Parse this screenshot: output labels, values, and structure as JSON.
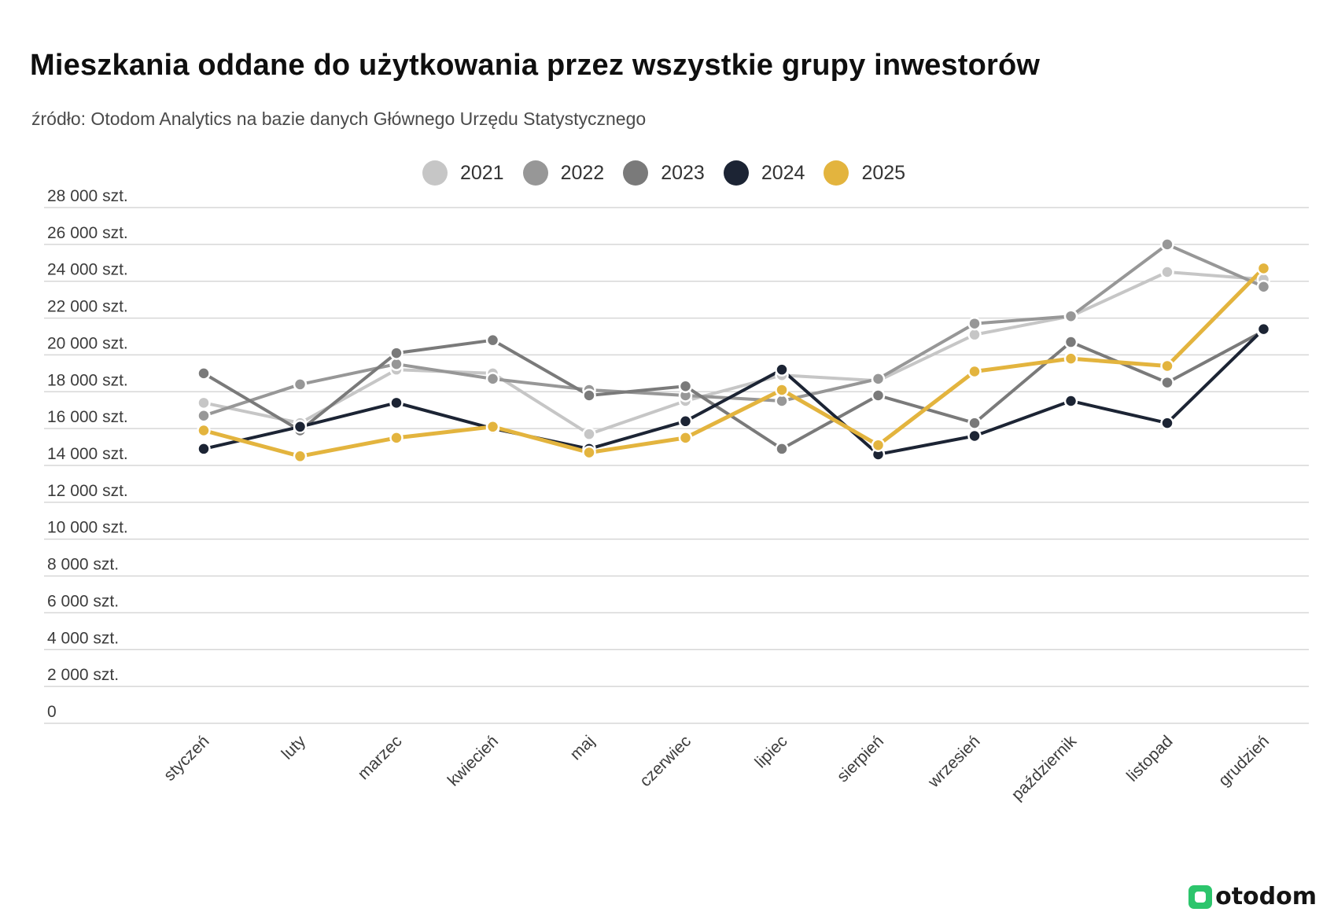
{
  "title": "Mieszkania oddane do użytkowania przez wszystkie grupy  inwestorów",
  "subtitle": "źródło: Otodom Analytics na bazie danych Głównego Urzędu Statystycznego",
  "logo_text": "otodom",
  "colors": {
    "gridline": "#d7d7d7",
    "logo_green": "#2cc56c"
  },
  "chart_data": {
    "type": "line",
    "categories": [
      "styczeń",
      "luty",
      "marzec",
      "kwiecień",
      "maj",
      "czerwiec",
      "lipiec",
      "sierpień",
      "wrzesień",
      "październik",
      "listopad",
      "grudzień"
    ],
    "y_tick_labels": [
      "0",
      "2 000 szt.",
      "4 000 szt.",
      "6 000 szt.",
      "8 000 szt.",
      "10 000 szt.",
      "12 000 szt.",
      "14 000 szt.",
      "16 000 szt.",
      "18 000 szt.",
      "20 000 szt.",
      "22 000 szt.",
      "24 000 szt.",
      "26 000 szt.",
      "28 000 szt."
    ],
    "ylim": [
      0,
      28000
    ],
    "grid": true,
    "legend_position": "top-center",
    "series": [
      {
        "name": "2021",
        "color": "#c6c6c6",
        "values": [
          17400,
          16300,
          19200,
          19000,
          15700,
          17500,
          18900,
          18600,
          21100,
          22100,
          24500,
          24100
        ]
      },
      {
        "name": "2022",
        "color": "#979797",
        "values": [
          16700,
          18400,
          19500,
          18700,
          18100,
          17800,
          17500,
          18700,
          21700,
          22100,
          26000,
          23700
        ]
      },
      {
        "name": "2023",
        "color": "#7a7a7a",
        "values": [
          19000,
          15900,
          20100,
          20800,
          17800,
          18300,
          14900,
          17800,
          16300,
          20700,
          18500,
          21300
        ]
      },
      {
        "name": "2024",
        "color": "#1c2434",
        "values": [
          14900,
          16100,
          17400,
          16000,
          14900,
          16400,
          19200,
          14600,
          15600,
          17500,
          16300,
          21400
        ]
      },
      {
        "name": "2025",
        "color": "#e3b43e",
        "values": [
          15900,
          14500,
          15500,
          16100,
          14700,
          15500,
          18100,
          15100,
          19100,
          19800,
          19400,
          24700
        ]
      }
    ]
  }
}
